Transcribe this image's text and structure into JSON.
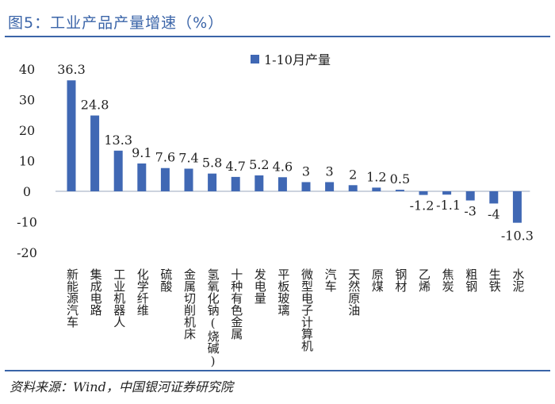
{
  "header": {
    "title": "图5：工业产品产量增速（%）"
  },
  "footer": {
    "source": "资料来源：Wind，中国银河证券研究院"
  },
  "colors": {
    "accent": "#3a64a8",
    "bar": "#4068b4",
    "text": "#222222"
  },
  "chart_data": {
    "type": "bar",
    "title": "",
    "xlabel": "",
    "ylabel": "",
    "ylim": [
      -20,
      40
    ],
    "yticks": [
      40,
      30,
      20,
      10,
      0,
      -10,
      -20
    ],
    "grid": false,
    "legend_position": "top-right",
    "series": [
      {
        "name": "1-10月产量",
        "values": [
          36.3,
          24.8,
          13.3,
          9.1,
          7.6,
          7.4,
          5.8,
          4.7,
          5.2,
          4.6,
          3,
          3,
          2,
          1.2,
          0.5,
          -1.2,
          -1.1,
          -3,
          -4,
          -10.3
        ],
        "labels": [
          "36.3",
          "24.8",
          "13.3",
          "9.1",
          "7.6",
          "7.4",
          "5.8",
          "4.7",
          "5.2",
          "4.6",
          "3",
          "3",
          "2",
          "1.2",
          "0.5",
          "-1.2",
          "-1.1",
          "-3",
          "-4",
          "-10.3"
        ]
      }
    ],
    "categories": [
      "新能源汽车",
      "集成电路",
      "工业机器人",
      "化学纤维",
      "硫酸",
      "金属切削机床",
      "氢氧化钠(烧碱)",
      "十种有色金属",
      "发电量",
      "平板玻璃",
      "微型电子计算机",
      "汽车",
      "天然原油",
      "原煤",
      "钢材",
      "乙烯",
      "焦炭",
      "粗钢",
      "生铁",
      "水泥"
    ]
  }
}
